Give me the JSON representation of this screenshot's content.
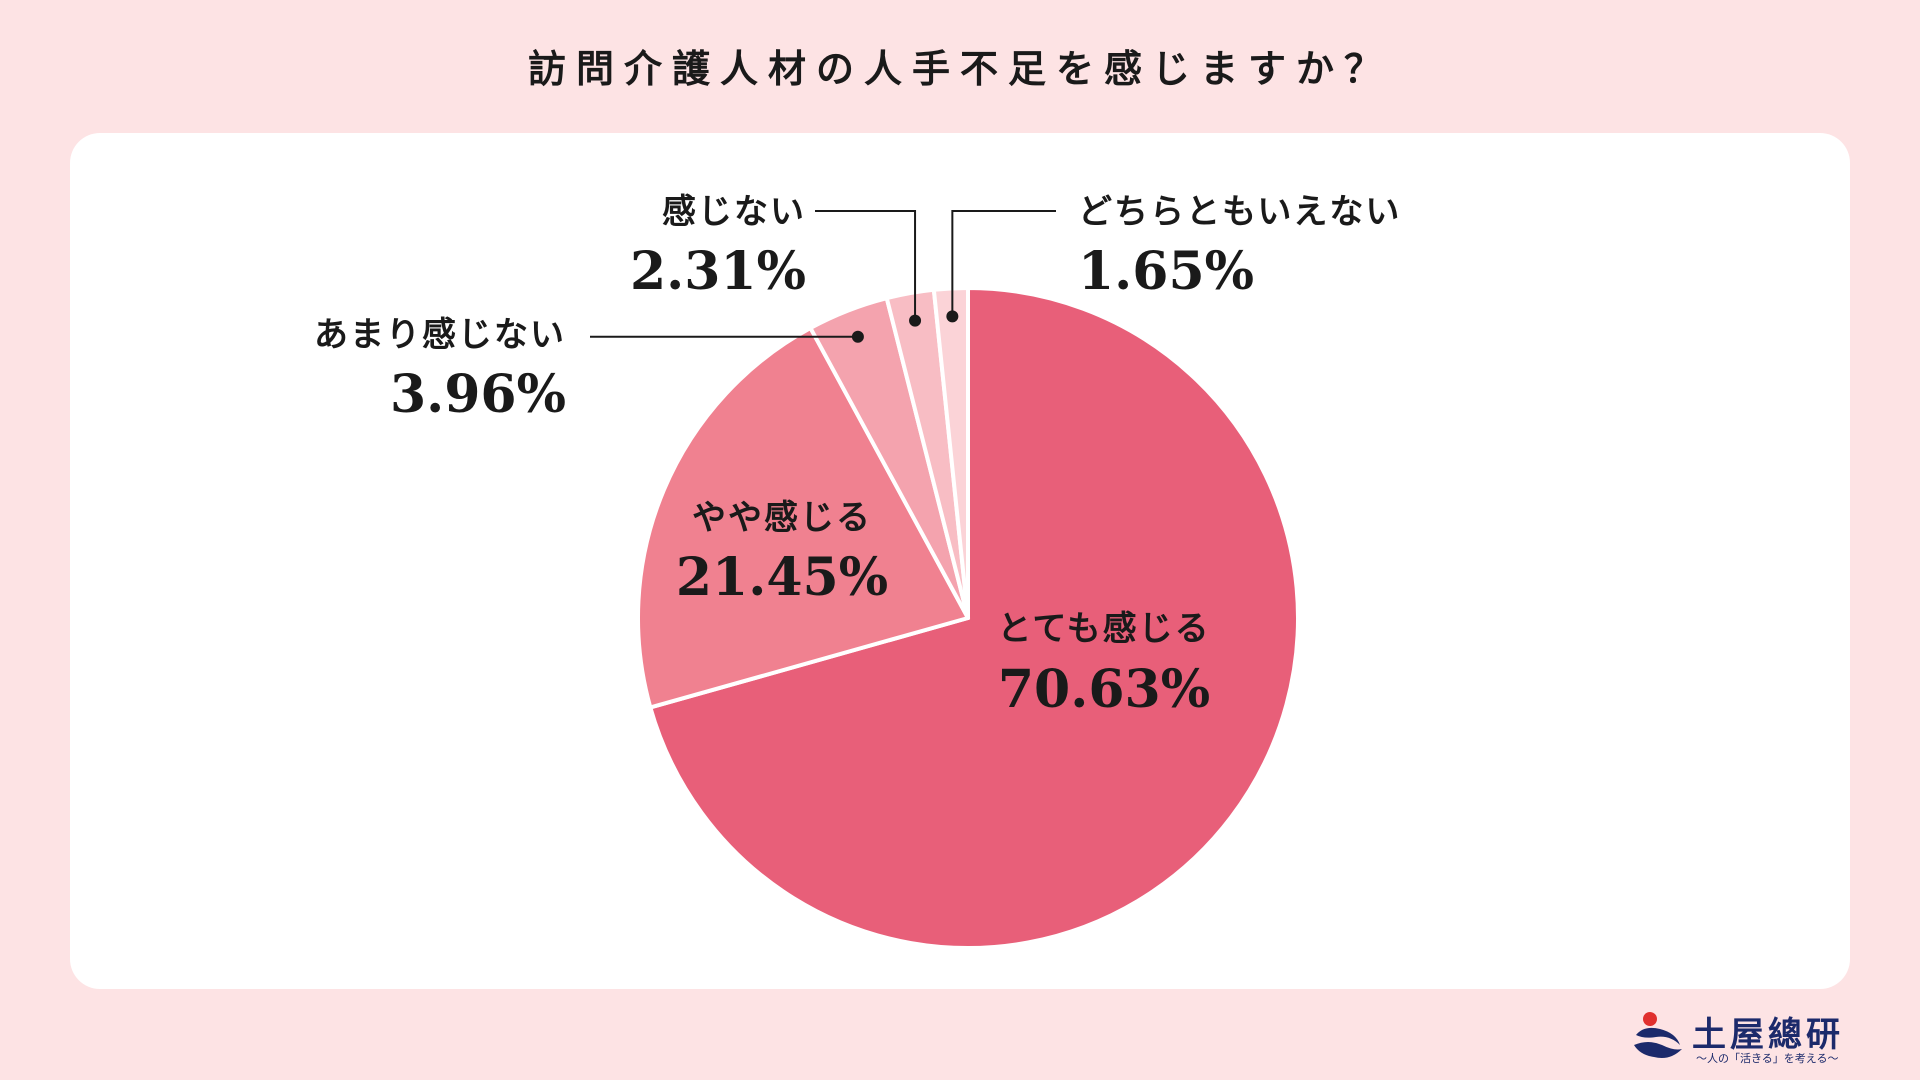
{
  "title": "訪問介護人材の人手不足を感じますか？",
  "logo": {
    "name": "土屋總研",
    "tagline": "〜人の「活きる」を考える〜",
    "colors": [
      "#1c2a6b",
      "#e0302e"
    ]
  },
  "chart_data": {
    "type": "pie",
    "title": "訪問介護人材の人手不足を感じますか？",
    "slices": [
      {
        "label": "とても感じる",
        "value": 70.63,
        "display": "70.63%",
        "color": "#e85f79"
      },
      {
        "label": "やや感じる",
        "value": 21.45,
        "display": "21.45%",
        "color": "#f08190"
      },
      {
        "label": "あまり感じない",
        "value": 3.96,
        "display": "3.96%",
        "color": "#f4a3ae"
      },
      {
        "label": "感じない",
        "value": 2.31,
        "display": "2.31%",
        "color": "#f8bdc4"
      },
      {
        "label": "どちらともいえない",
        "value": 1.65,
        "display": "1.65%",
        "color": "#fbd3d7"
      }
    ],
    "start_angle": "12 o'clock",
    "direction": "clockwise",
    "legend": "none"
  }
}
